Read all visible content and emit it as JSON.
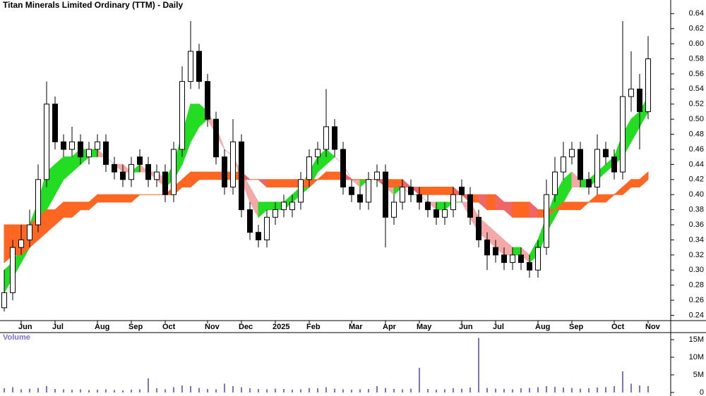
{
  "chart_data": {
    "type": "candlestick",
    "title": "Titan Minerals Limited Ordinary (TTM) - Daily",
    "categories": [
      null,
      null,
      "Jun",
      null,
      null,
      null,
      "Jul",
      null,
      null,
      null,
      null,
      "Aug",
      null,
      null,
      null,
      "Sep",
      null,
      null,
      null,
      "Oct",
      null,
      null,
      null,
      null,
      "Nov",
      null,
      null,
      null,
      "Dec",
      null,
      null,
      null,
      "2025",
      null,
      null,
      null,
      "Feb",
      null,
      null,
      null,
      null,
      "Mar",
      null,
      null,
      null,
      "Apr",
      null,
      null,
      null,
      "May",
      null,
      null,
      null,
      null,
      "Jun",
      null,
      null,
      null,
      "Jul",
      null,
      null,
      null,
      null,
      "Aug",
      null,
      null,
      null,
      "Sep",
      null,
      null,
      null,
      null,
      "Oct",
      null,
      null,
      null,
      "Nov"
    ],
    "open": [
      0.25,
      0.27,
      0.33,
      0.34,
      0.36,
      0.42,
      0.52,
      0.47,
      0.46,
      0.47,
      0.45,
      0.46,
      0.47,
      0.44,
      0.43,
      0.42,
      0.45,
      0.44,
      0.42,
      0.43,
      0.4,
      0.46,
      0.55,
      0.59,
      0.55,
      0.5,
      0.45,
      0.41,
      0.47,
      0.38,
      0.35,
      0.34,
      0.37,
      0.38,
      0.38,
      0.39,
      0.42,
      0.45,
      0.46,
      0.49,
      0.46,
      0.41,
      0.4,
      0.39,
      0.42,
      0.43,
      0.37,
      0.39,
      0.41,
      0.4,
      0.39,
      0.38,
      0.37,
      0.38,
      0.41,
      0.4,
      0.37,
      0.34,
      0.33,
      0.32,
      0.31,
      0.32,
      0.31,
      0.3,
      0.33,
      0.4,
      0.43,
      0.45,
      0.46,
      0.42,
      0.41,
      0.46,
      0.45,
      0.43,
      0.53,
      0.54,
      0.51
    ],
    "high": [
      0.3,
      0.34,
      0.36,
      0.38,
      0.44,
      0.55,
      0.53,
      0.48,
      0.49,
      0.48,
      0.47,
      0.48,
      0.48,
      0.45,
      0.44,
      0.45,
      0.46,
      0.45,
      0.44,
      0.44,
      0.47,
      0.57,
      0.63,
      0.6,
      0.56,
      0.51,
      0.46,
      0.5,
      0.48,
      0.39,
      0.36,
      0.38,
      0.39,
      0.4,
      0.4,
      0.43,
      0.46,
      0.47,
      0.54,
      0.5,
      0.47,
      0.42,
      0.41,
      0.43,
      0.44,
      0.44,
      0.4,
      0.42,
      0.42,
      0.41,
      0.4,
      0.39,
      0.39,
      0.41,
      0.42,
      0.41,
      0.38,
      0.35,
      0.34,
      0.33,
      0.33,
      0.33,
      0.32,
      0.34,
      0.42,
      0.45,
      0.47,
      0.47,
      0.47,
      0.43,
      0.48,
      0.47,
      0.46,
      0.63,
      0.59,
      0.56,
      0.61
    ],
    "low": [
      0.245,
      0.26,
      0.32,
      0.33,
      0.35,
      0.41,
      0.46,
      0.45,
      0.45,
      0.44,
      0.44,
      0.45,
      0.43,
      0.42,
      0.41,
      0.41,
      0.43,
      0.41,
      0.41,
      0.39,
      0.39,
      0.45,
      0.54,
      0.54,
      0.49,
      0.44,
      0.4,
      0.4,
      0.37,
      0.34,
      0.33,
      0.33,
      0.36,
      0.37,
      0.37,
      0.38,
      0.41,
      0.44,
      0.45,
      0.45,
      0.4,
      0.39,
      0.38,
      0.38,
      0.41,
      0.33,
      0.36,
      0.38,
      0.39,
      0.38,
      0.37,
      0.36,
      0.36,
      0.37,
      0.39,
      0.36,
      0.33,
      0.3,
      0.31,
      0.3,
      0.3,
      0.3,
      0.29,
      0.29,
      0.32,
      0.39,
      0.42,
      0.44,
      0.41,
      0.4,
      0.4,
      0.44,
      0.42,
      0.42,
      0.51,
      0.46,
      0.5
    ],
    "close": [
      0.27,
      0.33,
      0.34,
      0.36,
      0.42,
      0.52,
      0.47,
      0.46,
      0.47,
      0.45,
      0.46,
      0.47,
      0.44,
      0.43,
      0.42,
      0.44,
      0.44,
      0.42,
      0.43,
      0.4,
      0.46,
      0.55,
      0.59,
      0.55,
      0.5,
      0.45,
      0.41,
      0.47,
      0.38,
      0.35,
      0.34,
      0.37,
      0.38,
      0.39,
      0.39,
      0.42,
      0.45,
      0.46,
      0.49,
      0.46,
      0.41,
      0.4,
      0.39,
      0.42,
      0.43,
      0.37,
      0.39,
      0.41,
      0.4,
      0.39,
      0.38,
      0.37,
      0.38,
      0.4,
      0.4,
      0.37,
      0.34,
      0.32,
      0.32,
      0.31,
      0.32,
      0.31,
      0.3,
      0.33,
      0.4,
      0.43,
      0.45,
      0.46,
      0.42,
      0.41,
      0.46,
      0.45,
      0.43,
      0.53,
      0.54,
      0.51,
      0.58
    ],
    "up_color": "#ffffff",
    "down_color": "#000000",
    "bands": [
      {
        "up_color": "#22dd22",
        "down_color": "#f5a8a8",
        "upper": [
          0.3,
          0.31,
          0.33,
          0.36,
          0.39,
          0.43,
          0.44,
          0.45,
          0.45,
          0.46,
          0.46,
          0.46,
          0.45,
          0.44,
          0.44,
          0.43,
          0.44,
          0.43,
          0.43,
          0.42,
          0.44,
          0.48,
          0.52,
          0.52,
          0.51,
          0.49,
          0.46,
          0.45,
          0.43,
          0.41,
          0.39,
          0.39,
          0.39,
          0.39,
          0.4,
          0.41,
          0.43,
          0.45,
          0.46,
          0.45,
          0.44,
          0.42,
          0.42,
          0.42,
          0.42,
          0.41,
          0.41,
          0.41,
          0.4,
          0.4,
          0.39,
          0.39,
          0.39,
          0.39,
          0.39,
          0.39,
          0.37,
          0.36,
          0.35,
          0.34,
          0.33,
          0.33,
          0.32,
          0.34,
          0.37,
          0.4,
          0.42,
          0.43,
          0.42,
          0.42,
          0.43,
          0.44,
          0.45,
          0.48,
          0.5,
          0.51,
          0.53
        ],
        "lower": [
          0.27,
          0.29,
          0.31,
          0.33,
          0.35,
          0.38,
          0.4,
          0.42,
          0.43,
          0.44,
          0.45,
          0.45,
          0.45,
          0.44,
          0.43,
          0.43,
          0.43,
          0.43,
          0.42,
          0.41,
          0.42,
          0.44,
          0.47,
          0.49,
          0.5,
          0.48,
          0.46,
          0.45,
          0.42,
          0.39,
          0.37,
          0.38,
          0.38,
          0.38,
          0.39,
          0.4,
          0.41,
          0.43,
          0.44,
          0.45,
          0.44,
          0.42,
          0.41,
          0.42,
          0.42,
          0.41,
          0.4,
          0.41,
          0.4,
          0.4,
          0.39,
          0.38,
          0.38,
          0.39,
          0.39,
          0.37,
          0.35,
          0.34,
          0.33,
          0.32,
          0.32,
          0.32,
          0.31,
          0.32,
          0.35,
          0.37,
          0.39,
          0.41,
          0.41,
          0.41,
          0.42,
          0.43,
          0.44,
          0.45,
          0.47,
          0.49,
          0.51
        ]
      },
      {
        "up_color": "#ff6622",
        "down_color": "#ee6666",
        "upper": [
          0.36,
          0.36,
          0.36,
          0.36,
          0.37,
          0.38,
          0.38,
          0.39,
          0.39,
          0.39,
          0.39,
          0.4,
          0.4,
          0.4,
          0.4,
          0.4,
          0.4,
          0.4,
          0.4,
          0.4,
          0.41,
          0.42,
          0.43,
          0.43,
          0.43,
          0.43,
          0.43,
          0.43,
          0.43,
          0.42,
          0.42,
          0.42,
          0.42,
          0.42,
          0.42,
          0.42,
          0.42,
          0.42,
          0.43,
          0.43,
          0.43,
          0.42,
          0.42,
          0.42,
          0.42,
          0.42,
          0.42,
          0.42,
          0.41,
          0.41,
          0.41,
          0.41,
          0.41,
          0.41,
          0.4,
          0.4,
          0.4,
          0.4,
          0.4,
          0.39,
          0.39,
          0.39,
          0.39,
          0.38,
          0.38,
          0.38,
          0.39,
          0.39,
          0.39,
          0.39,
          0.4,
          0.4,
          0.4,
          0.41,
          0.42,
          0.42,
          0.43
        ],
        "lower": [
          0.31,
          0.32,
          0.32,
          0.33,
          0.34,
          0.35,
          0.36,
          0.37,
          0.37,
          0.38,
          0.38,
          0.39,
          0.39,
          0.39,
          0.39,
          0.39,
          0.4,
          0.4,
          0.4,
          0.4,
          0.4,
          0.41,
          0.41,
          0.42,
          0.42,
          0.42,
          0.42,
          0.42,
          0.42,
          0.42,
          0.42,
          0.41,
          0.41,
          0.41,
          0.41,
          0.41,
          0.41,
          0.42,
          0.42,
          0.42,
          0.42,
          0.42,
          0.42,
          0.42,
          0.42,
          0.41,
          0.41,
          0.41,
          0.41,
          0.4,
          0.4,
          0.4,
          0.4,
          0.4,
          0.4,
          0.39,
          0.39,
          0.38,
          0.38,
          0.38,
          0.37,
          0.37,
          0.37,
          0.37,
          0.37,
          0.38,
          0.38,
          0.38,
          0.38,
          0.39,
          0.39,
          0.39,
          0.4,
          0.4,
          0.41,
          0.41,
          0.42
        ]
      }
    ],
    "ylim": [
      0.233,
      0.658
    ],
    "yticks": [
      0.24,
      0.26,
      0.28,
      {
        "value": 0.3,
        "label": "0.30"
      },
      0.32,
      0.34,
      0.36,
      0.38,
      {
        "value": 0.4,
        "label": "0.40"
      },
      0.42,
      0.44,
      0.46,
      0.48,
      {
        "value": 0.5,
        "label": "0.50"
      },
      0.52,
      0.54,
      0.56,
      0.58,
      {
        "value": 0.6,
        "label": "0.60"
      },
      0.62,
      0.64
    ],
    "grid": false,
    "volume": {
      "label": "Volume",
      "color": "#7a72d8",
      "values": [
        1200000,
        1500000,
        900000,
        1100000,
        1300000,
        1800000,
        1000000,
        900000,
        800000,
        900000,
        700000,
        800000,
        900000,
        700000,
        600000,
        800000,
        900000,
        4000000,
        1200000,
        900000,
        1500000,
        2000000,
        1800000,
        1300000,
        1000000,
        900000,
        2500000,
        1800000,
        1500000,
        1200000,
        1000000,
        900000,
        1100000,
        1000000,
        800000,
        900000,
        1300000,
        1200000,
        1500000,
        1100000,
        900000,
        800000,
        900000,
        1000000,
        1800000,
        1300000,
        1000000,
        900000,
        1100000,
        7000000,
        1000000,
        800000,
        900000,
        1200000,
        1100000,
        1400000,
        15500000,
        1300000,
        1100000,
        1000000,
        900000,
        1200000,
        1300000,
        1500000,
        1800000,
        1600000,
        1400000,
        1300000,
        1100000,
        1200000,
        1400000,
        1500000,
        1800000,
        6000000,
        2500000,
        2000000,
        1800000
      ],
      "ylim": [
        0,
        16200000
      ],
      "yticks": [
        0,
        {
          "value": 5000000,
          "label": "5M"
        },
        {
          "value": 10000000,
          "label": "10M"
        },
        {
          "value": 15000000,
          "label": "15M"
        }
      ]
    }
  }
}
